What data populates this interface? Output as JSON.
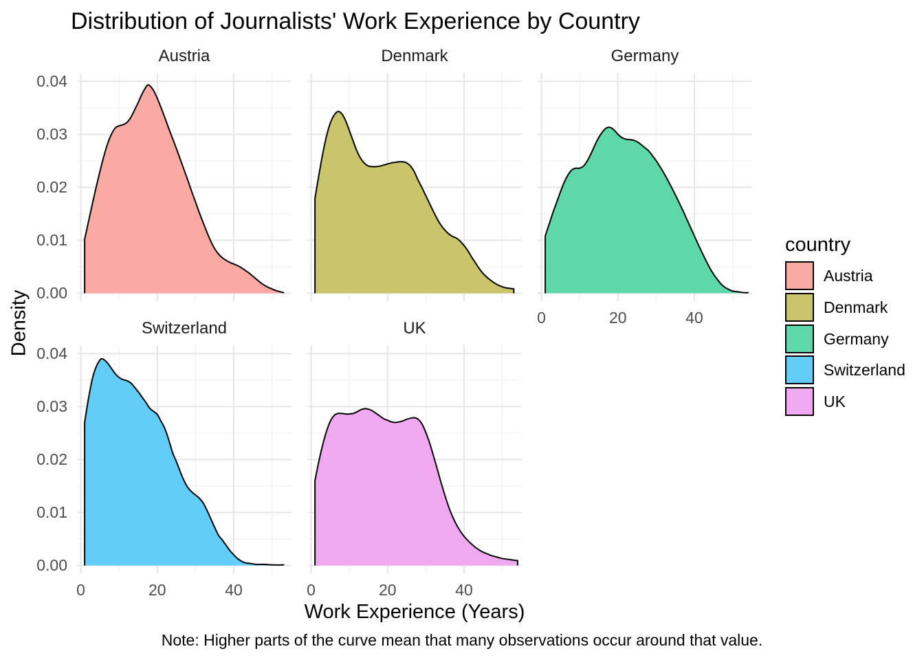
{
  "title": "Distribution of Journalists' Work Experience by Country",
  "axes": {
    "x_title": "Work Experience (Years)",
    "y_title": "Density"
  },
  "caption": "Note: Higher parts of the curve mean that many observations occur around that value.",
  "legend": {
    "title": "country",
    "entries": [
      {
        "label": "Austria",
        "color": "#F9ABA3"
      },
      {
        "label": "Denmark",
        "color": "#C9C56A"
      },
      {
        "label": "Germany",
        "color": "#5FD7AC"
      },
      {
        "label": "Switzerland",
        "color": "#62CEF7"
      },
      {
        "label": "UK",
        "color": "#F0A9F0"
      }
    ]
  },
  "chart_data": {
    "type": "area",
    "subtype": "faceted-density",
    "title": "Distribution of Journalists' Work Experience by Country",
    "xlabel": "Work Experience (Years)",
    "ylabel": "Density",
    "caption": "Note: Higher parts of the curve mean that many observations occur around that value.",
    "grid_on": true,
    "legend_position": "right",
    "facet_grid": [
      [
        "Austria",
        "Denmark",
        "Germany"
      ],
      [
        "Switzerland",
        "UK"
      ]
    ],
    "xlim": [
      -1.0,
      55.1
    ],
    "ylim": [
      -0.0015,
      0.0416
    ],
    "x_ticks": {
      "values": [
        0,
        20,
        40
      ],
      "labels": [
        "0",
        "20",
        "40"
      ]
    },
    "x_minor": [
      10,
      30,
      50
    ],
    "y_ticks": {
      "values": [
        0,
        0.01,
        0.02,
        0.03,
        0.04
      ],
      "labels": [
        "0.00",
        "0.01",
        "0.02",
        "0.03",
        "0.04"
      ]
    },
    "y_minor": [
      0.005,
      0.015,
      0.025,
      0.035
    ],
    "line_color": "#000000",
    "series": [
      {
        "name": "Austria",
        "fill": "#F9ABA3",
        "row": 0,
        "col": 0,
        "points": [
          [
            1,
            0.0102
          ],
          [
            2,
            0.0135
          ],
          [
            3,
            0.0168
          ],
          [
            4,
            0.02
          ],
          [
            5,
            0.023
          ],
          [
            6,
            0.0258
          ],
          [
            7,
            0.0282
          ],
          [
            8,
            0.03
          ],
          [
            9,
            0.0312
          ],
          [
            10,
            0.0316
          ],
          [
            11,
            0.0318
          ],
          [
            12,
            0.0322
          ],
          [
            13,
            0.0331
          ],
          [
            14,
            0.0345
          ],
          [
            15,
            0.036
          ],
          [
            16,
            0.0376
          ],
          [
            17,
            0.0389
          ],
          [
            17.5,
            0.0393
          ],
          [
            18,
            0.0392
          ],
          [
            19,
            0.0383
          ],
          [
            20,
            0.0368
          ],
          [
            21,
            0.035
          ],
          [
            22,
            0.0331
          ],
          [
            23,
            0.0311
          ],
          [
            24,
            0.0292
          ],
          [
            25,
            0.0273
          ],
          [
            26,
            0.0253
          ],
          [
            27,
            0.0233
          ],
          [
            28,
            0.0213
          ],
          [
            29,
            0.0192
          ],
          [
            30,
            0.0172
          ],
          [
            31,
            0.0152
          ],
          [
            32,
            0.0133
          ],
          [
            33,
            0.0115
          ],
          [
            34,
            0.0098
          ],
          [
            35,
            0.0084
          ],
          [
            36,
            0.0074
          ],
          [
            37,
            0.0067
          ],
          [
            38,
            0.0062
          ],
          [
            39,
            0.0058
          ],
          [
            40,
            0.0055
          ],
          [
            41,
            0.0052
          ],
          [
            42,
            0.0048
          ],
          [
            43,
            0.0043
          ],
          [
            44,
            0.0038
          ],
          [
            45,
            0.0032
          ],
          [
            46,
            0.0026
          ],
          [
            47,
            0.002
          ],
          [
            48,
            0.0015
          ],
          [
            49,
            0.0011
          ],
          [
            50,
            0.0008
          ],
          [
            51,
            0.0005
          ],
          [
            52,
            0.0003
          ],
          [
            53,
            0.0001
          ]
        ]
      },
      {
        "name": "Denmark",
        "fill": "#C9C56A",
        "row": 0,
        "col": 1,
        "points": [
          [
            1,
            0.0179
          ],
          [
            2,
            0.0222
          ],
          [
            3,
            0.0262
          ],
          [
            4,
            0.0296
          ],
          [
            5,
            0.0321
          ],
          [
            6,
            0.0336
          ],
          [
            7,
            0.0343
          ],
          [
            8,
            0.0339
          ],
          [
            9,
            0.0326
          ],
          [
            10,
            0.0307
          ],
          [
            11,
            0.0287
          ],
          [
            12,
            0.0268
          ],
          [
            13,
            0.0254
          ],
          [
            14,
            0.0245
          ],
          [
            15,
            0.024
          ],
          [
            16,
            0.0239
          ],
          [
            17,
            0.0239
          ],
          [
            18,
            0.024
          ],
          [
            19,
            0.0242
          ],
          [
            20,
            0.0244
          ],
          [
            21,
            0.0246
          ],
          [
            22,
            0.0247
          ],
          [
            23,
            0.0248
          ],
          [
            24,
            0.0248
          ],
          [
            25,
            0.0246
          ],
          [
            26,
            0.024
          ],
          [
            27,
            0.0229
          ],
          [
            28,
            0.0213
          ],
          [
            29,
            0.0199
          ],
          [
            30,
            0.0184
          ],
          [
            31,
            0.0169
          ],
          [
            32,
            0.0154
          ],
          [
            33,
            0.014
          ],
          [
            34,
            0.0128
          ],
          [
            35,
            0.0119
          ],
          [
            36,
            0.0112
          ],
          [
            37,
            0.0107
          ],
          [
            38,
            0.0104
          ],
          [
            39,
            0.0098
          ],
          [
            40,
            0.009
          ],
          [
            41,
            0.008
          ],
          [
            42,
            0.0068
          ],
          [
            43,
            0.0057
          ],
          [
            44,
            0.0046
          ],
          [
            45,
            0.0037
          ],
          [
            46,
            0.003
          ],
          [
            47,
            0.0024
          ],
          [
            48,
            0.0019
          ],
          [
            49,
            0.0015
          ],
          [
            50,
            0.0012
          ],
          [
            51,
            0.001
          ],
          [
            52,
            0.0009
          ],
          [
            53,
            0.0008
          ]
        ]
      },
      {
        "name": "Germany",
        "fill": "#5FD7AC",
        "row": 0,
        "col": 2,
        "points": [
          [
            1,
            0.0108
          ],
          [
            2,
            0.013
          ],
          [
            3,
            0.0152
          ],
          [
            4,
            0.0172
          ],
          [
            5,
            0.0192
          ],
          [
            6,
            0.021
          ],
          [
            7,
            0.0224
          ],
          [
            8,
            0.0233
          ],
          [
            9,
            0.0236
          ],
          [
            10,
            0.0236
          ],
          [
            11,
            0.024
          ],
          [
            12,
            0.025
          ],
          [
            13,
            0.0264
          ],
          [
            14,
            0.028
          ],
          [
            15,
            0.0294
          ],
          [
            16,
            0.0305
          ],
          [
            17,
            0.0312
          ],
          [
            18,
            0.0313
          ],
          [
            19,
            0.0308
          ],
          [
            20,
            0.03
          ],
          [
            21,
            0.0294
          ],
          [
            22,
            0.0291
          ],
          [
            23,
            0.029
          ],
          [
            24,
            0.0289
          ],
          [
            25,
            0.0286
          ],
          [
            26,
            0.0281
          ],
          [
            27,
            0.0275
          ],
          [
            28,
            0.0269
          ],
          [
            29,
            0.026
          ],
          [
            30,
            0.025
          ],
          [
            31,
            0.0239
          ],
          [
            32,
            0.0227
          ],
          [
            33,
            0.0214
          ],
          [
            34,
            0.02
          ],
          [
            35,
            0.0186
          ],
          [
            36,
            0.0171
          ],
          [
            37,
            0.0156
          ],
          [
            38,
            0.014
          ],
          [
            39,
            0.0124
          ],
          [
            40,
            0.0108
          ],
          [
            41,
            0.0092
          ],
          [
            42,
            0.0077
          ],
          [
            43,
            0.0062
          ],
          [
            44,
            0.0048
          ],
          [
            45,
            0.0036
          ],
          [
            46,
            0.0026
          ],
          [
            47,
            0.0017
          ],
          [
            48,
            0.0011
          ],
          [
            49,
            0.0007
          ],
          [
            50,
            0.0004
          ],
          [
            51,
            0.0003
          ],
          [
            52,
            0.0002
          ],
          [
            53,
            0.0001
          ],
          [
            54,
            0.0001
          ]
        ]
      },
      {
        "name": "Switzerland",
        "fill": "#62CEF7",
        "row": 1,
        "col": 0,
        "points": [
          [
            1,
            0.027
          ],
          [
            2,
            0.0315
          ],
          [
            3,
            0.0352
          ],
          [
            4,
            0.0375
          ],
          [
            5,
            0.0388
          ],
          [
            5.5,
            0.039
          ],
          [
            6,
            0.0389
          ],
          [
            7,
            0.0382
          ],
          [
            8,
            0.0372
          ],
          [
            9,
            0.0362
          ],
          [
            10,
            0.0355
          ],
          [
            11,
            0.0351
          ],
          [
            12,
            0.0349
          ],
          [
            13,
            0.0345
          ],
          [
            14,
            0.0337
          ],
          [
            15,
            0.0328
          ],
          [
            16,
            0.0318
          ],
          [
            17,
            0.0308
          ],
          [
            18,
            0.0297
          ],
          [
            19,
            0.0291
          ],
          [
            20,
            0.0285
          ],
          [
            21,
            0.0272
          ],
          [
            22,
            0.0258
          ],
          [
            23,
            0.0237
          ],
          [
            24,
            0.0213
          ],
          [
            25,
            0.0196
          ],
          [
            26,
            0.0177
          ],
          [
            27,
            0.016
          ],
          [
            28,
            0.0147
          ],
          [
            29,
            0.0139
          ],
          [
            30,
            0.0133
          ],
          [
            31,
            0.0127
          ],
          [
            32,
            0.0118
          ],
          [
            33,
            0.0104
          ],
          [
            34,
            0.0088
          ],
          [
            35,
            0.0072
          ],
          [
            36,
            0.0057
          ],
          [
            37,
            0.0048
          ],
          [
            38,
            0.0038
          ],
          [
            39,
            0.0028
          ],
          [
            40,
            0.002
          ],
          [
            41,
            0.0013
          ],
          [
            42,
            0.0008
          ],
          [
            43,
            0.0005
          ],
          [
            44,
            0.0004
          ],
          [
            46,
            0.0002
          ],
          [
            48,
            0.0002
          ],
          [
            50,
            0.0001
          ],
          [
            53,
            0.0001
          ]
        ]
      },
      {
        "name": "UK",
        "fill": "#F0A9F0",
        "row": 1,
        "col": 1,
        "points": [
          [
            1,
            0.016
          ],
          [
            2,
            0.0196
          ],
          [
            3,
            0.0227
          ],
          [
            4,
            0.0253
          ],
          [
            5,
            0.0272
          ],
          [
            6,
            0.0283
          ],
          [
            7,
            0.0287
          ],
          [
            8,
            0.0287
          ],
          [
            9,
            0.0286
          ],
          [
            10,
            0.0286
          ],
          [
            11,
            0.0287
          ],
          [
            12,
            0.029
          ],
          [
            13,
            0.0294
          ],
          [
            14,
            0.0296
          ],
          [
            15,
            0.0295
          ],
          [
            16,
            0.0292
          ],
          [
            17,
            0.0287
          ],
          [
            18,
            0.0282
          ],
          [
            19,
            0.0277
          ],
          [
            20,
            0.0274
          ],
          [
            21,
            0.0271
          ],
          [
            22,
            0.027
          ],
          [
            23,
            0.0271
          ],
          [
            24,
            0.0273
          ],
          [
            25,
            0.0276
          ],
          [
            26,
            0.0278
          ],
          [
            27,
            0.0279
          ],
          [
            28,
            0.0276
          ],
          [
            29,
            0.0267
          ],
          [
            30,
            0.0251
          ],
          [
            31,
            0.0231
          ],
          [
            32,
            0.0207
          ],
          [
            33,
            0.0182
          ],
          [
            34,
            0.0156
          ],
          [
            35,
            0.0132
          ],
          [
            36,
            0.011
          ],
          [
            37,
            0.0092
          ],
          [
            38,
            0.0077
          ],
          [
            39,
            0.0065
          ],
          [
            40,
            0.0055
          ],
          [
            41,
            0.0047
          ],
          [
            42,
            0.004
          ],
          [
            43,
            0.0034
          ],
          [
            44,
            0.0029
          ],
          [
            45,
            0.0025
          ],
          [
            46,
            0.0022
          ],
          [
            47,
            0.0019
          ],
          [
            48,
            0.0017
          ],
          [
            49,
            0.0015
          ],
          [
            50,
            0.0013
          ],
          [
            51,
            0.0012
          ],
          [
            52,
            0.0011
          ],
          [
            53,
            0.001
          ],
          [
            54,
            0.0009
          ]
        ]
      }
    ]
  }
}
